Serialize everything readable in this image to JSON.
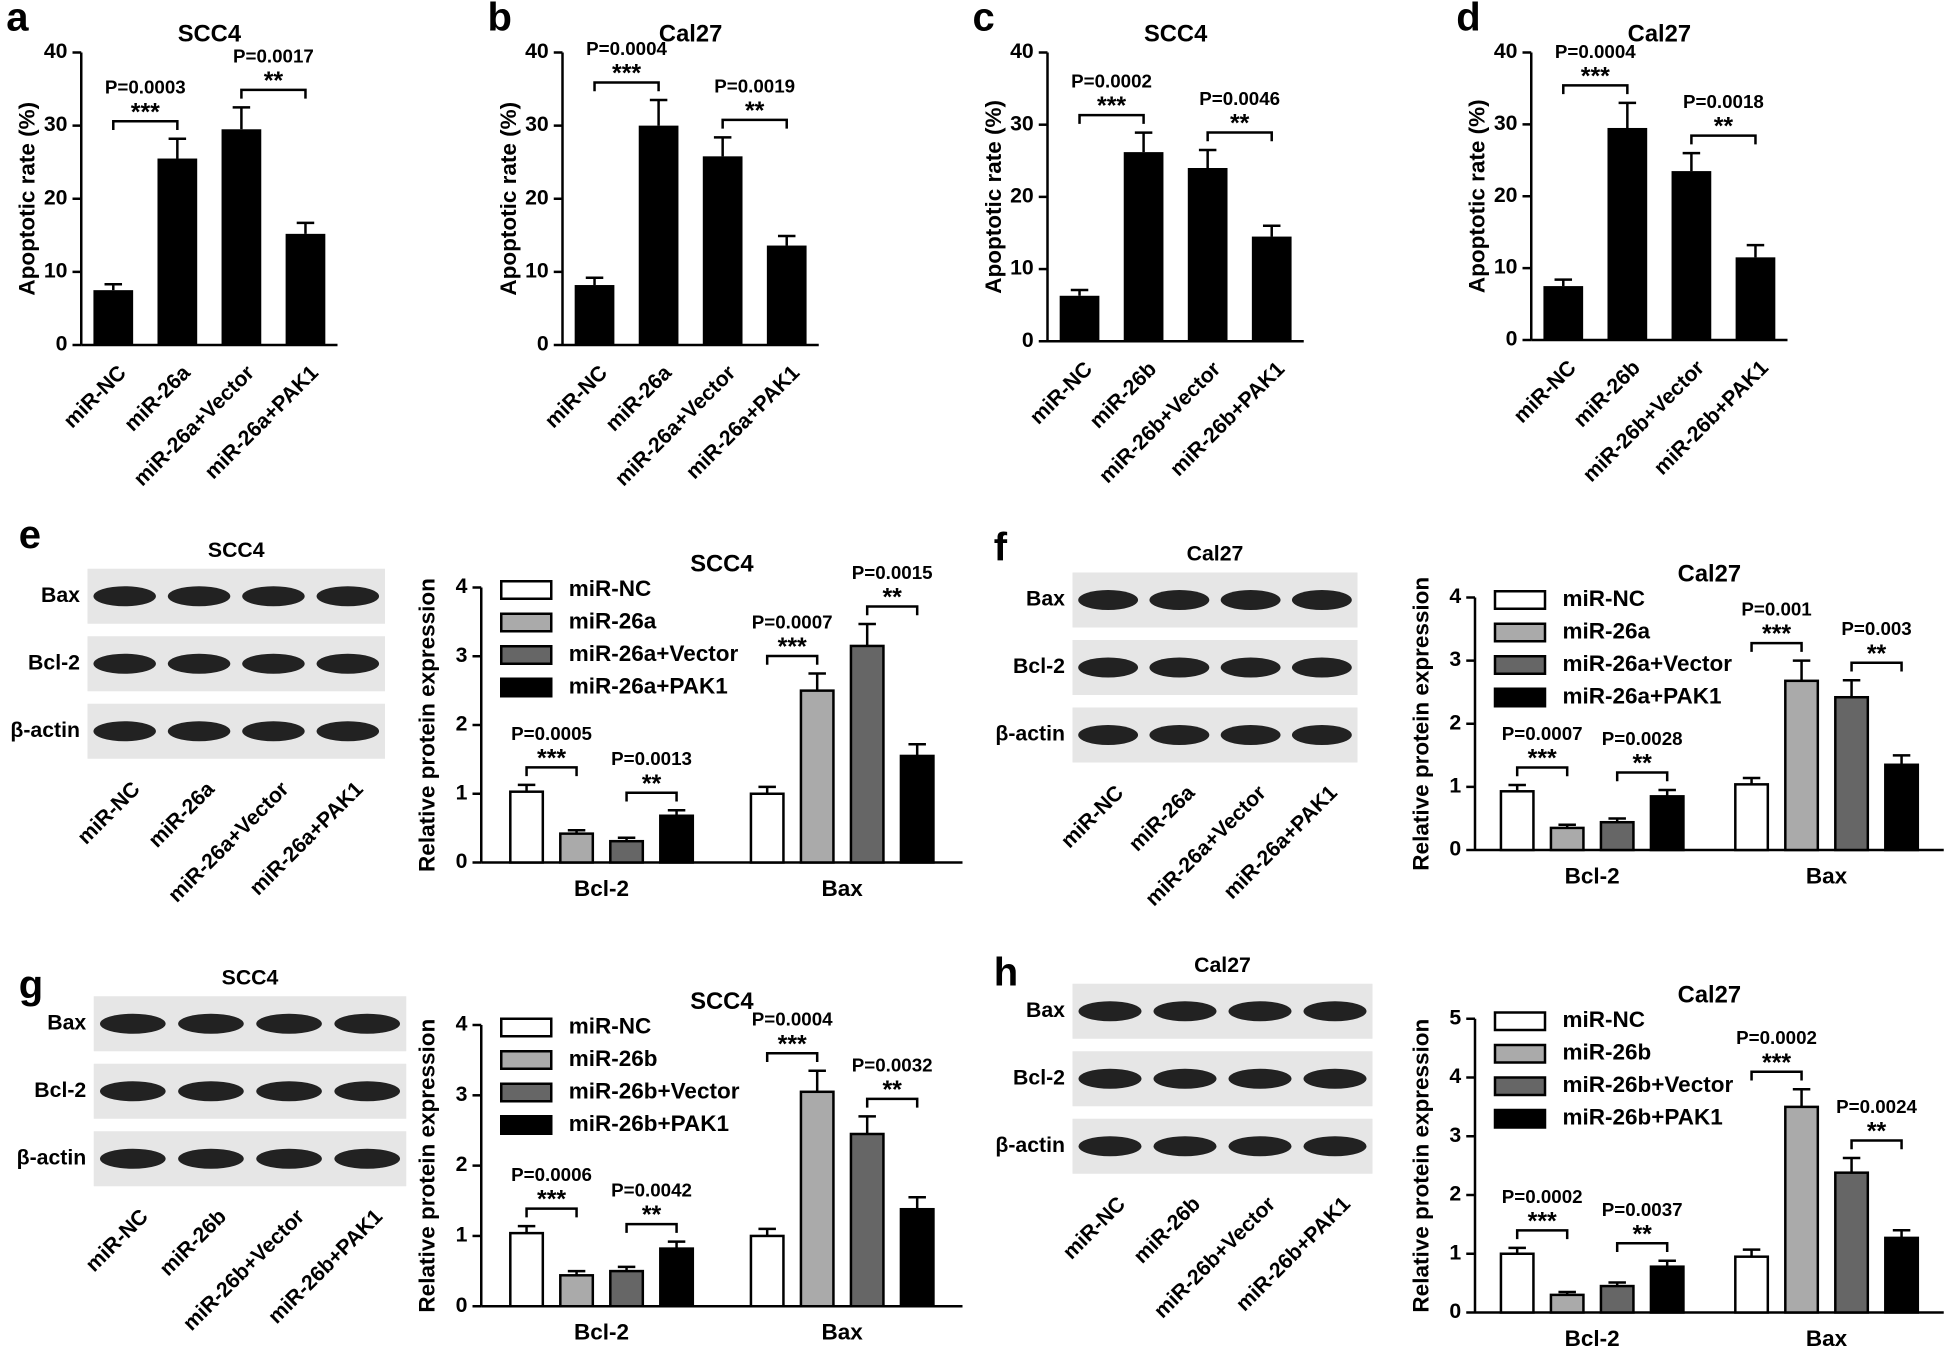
{
  "chart_data": [
    {
      "type": "bar",
      "label": "a",
      "title": "SCC4",
      "y_label": "Apoptotic rate (%)",
      "color": "#000000",
      "categories": [
        "miR-NC",
        "miR-26a",
        "miR-26a+Vector",
        "miR-26a+PAK1"
      ],
      "values": [
        7.5,
        25.5,
        29.5,
        15.2
      ],
      "errors": [
        0.8,
        2.7,
        3,
        1.5
      ],
      "ylim": [
        0,
        40
      ],
      "yticks": [
        0,
        10,
        20,
        30,
        40
      ],
      "comparisons": [
        {
          "stars": "***",
          "p": "P=0.0003"
        },
        {
          "stars": "**",
          "p": "P=0.0017"
        }
      ]
    },
    {
      "type": "bar",
      "label": "b",
      "title": "Cal27",
      "y_label": "Apoptotic rate (%)",
      "color": "#000000",
      "categories": [
        "miR-NC",
        "miR-26a",
        "miR-26a+Vector",
        "miR-26a+PAK1"
      ],
      "values": [
        8.2,
        30,
        25.8,
        13.6
      ],
      "errors": [
        1,
        3.5,
        2.6,
        1.3
      ],
      "ylim": [
        0,
        40
      ],
      "yticks": [
        0,
        10,
        20,
        30,
        40
      ],
      "comparisons": [
        {
          "stars": "***",
          "p": "P=0.0004"
        },
        {
          "stars": "**",
          "p": "P=0.0019"
        }
      ]
    },
    {
      "type": "bar",
      "label": "c",
      "title": "SCC4",
      "y_label": "Apoptotic rate (%)",
      "color": "#000000",
      "categories": [
        "miR-NC",
        "miR-26b",
        "miR-26b+Vector",
        "miR-26b+PAK1"
      ],
      "values": [
        6.3,
        26.2,
        24,
        14.5
      ],
      "errors": [
        0.8,
        2.7,
        2.5,
        1.5
      ],
      "ylim": [
        0,
        40
      ],
      "yticks": [
        0,
        10,
        20,
        30,
        40
      ],
      "comparisons": [
        {
          "stars": "***",
          "p": "P=0.0002"
        },
        {
          "stars": "**",
          "p": "P=0.0046"
        }
      ]
    },
    {
      "type": "bar",
      "label": "d",
      "title": "Cal27",
      "y_label": "Apoptotic rate (%)",
      "color": "#000000",
      "categories": [
        "miR-NC",
        "miR-26b",
        "miR-26b+Vector",
        "miR-26b+PAK1"
      ],
      "values": [
        7.5,
        29.5,
        23.5,
        11.5
      ],
      "errors": [
        0.9,
        3.5,
        2.5,
        1.7
      ],
      "ylim": [
        0,
        40
      ],
      "yticks": [
        0,
        10,
        20,
        30,
        40
      ],
      "comparisons": [
        {
          "stars": "***",
          "p": "P=0.0004"
        },
        {
          "stars": "**",
          "p": "P=0.0018"
        }
      ]
    },
    {
      "type": "blot",
      "label": "e",
      "title": "SCC4",
      "rows": [
        "Bax",
        "Bcl-2",
        "β-actin"
      ],
      "lanes": [
        "miR-NC",
        "miR-26a",
        "miR-26a+Vector",
        "miR-26a+PAK1"
      ]
    },
    {
      "type": "grouped_bar",
      "title": "SCC4",
      "y_label": "Relative protein expression",
      "categories": [
        "Bcl-2",
        "Bax"
      ],
      "series": [
        {
          "name": "miR-NC",
          "color": "#ffffff",
          "values": [
            1.03,
            1.0
          ],
          "errors": [
            0.1,
            0.1
          ]
        },
        {
          "name": "miR-26a",
          "color": "#aaaaaa",
          "values": [
            0.42,
            2.5
          ],
          "errors": [
            0.05,
            0.25
          ]
        },
        {
          "name": "miR-26a+Vector",
          "color": "#666666",
          "values": [
            0.31,
            3.15
          ],
          "errors": [
            0.05,
            0.32
          ]
        },
        {
          "name": "miR-26a+PAK1",
          "color": "#000000",
          "values": [
            0.68,
            1.55
          ],
          "errors": [
            0.08,
            0.17
          ]
        }
      ],
      "ylim": [
        0,
        4
      ],
      "yticks": [
        0,
        1,
        2,
        3,
        4
      ],
      "comparisons": [
        {
          "stars": "***",
          "p": "P=0.0005"
        },
        {
          "stars": "**",
          "p": "P=0.0013"
        },
        {
          "stars": "***",
          "p": "P=0.0007"
        },
        {
          "stars": "**",
          "p": "P=0.0015"
        }
      ]
    },
    {
      "type": "blot",
      "label": "f",
      "title": "Cal27",
      "rows": [
        "Bax",
        "Bcl-2",
        "β-actin"
      ],
      "lanes": [
        "miR-NC",
        "miR-26a",
        "miR-26a+Vector",
        "miR-26a+PAK1"
      ]
    },
    {
      "type": "grouped_bar",
      "title": "Cal27",
      "y_label": "Relative protein expression",
      "categories": [
        "Bcl-2",
        "Bax"
      ],
      "series": [
        {
          "name": "miR-NC",
          "color": "#ffffff",
          "values": [
            0.93,
            1.04
          ],
          "errors": [
            0.1,
            0.1
          ]
        },
        {
          "name": "miR-26a",
          "color": "#aaaaaa",
          "values": [
            0.35,
            2.68
          ],
          "errors": [
            0.05,
            0.32
          ]
        },
        {
          "name": "miR-26a+Vector",
          "color": "#666666",
          "values": [
            0.44,
            2.42
          ],
          "errors": [
            0.06,
            0.27
          ]
        },
        {
          "name": "miR-26a+PAK1",
          "color": "#000000",
          "values": [
            0.85,
            1.35
          ],
          "errors": [
            0.1,
            0.15
          ]
        }
      ],
      "ylim": [
        0,
        4
      ],
      "yticks": [
        0,
        1,
        2,
        3,
        4
      ],
      "comparisons": [
        {
          "stars": "***",
          "p": "P=0.0007"
        },
        {
          "stars": "**",
          "p": "P=0.0028"
        },
        {
          "stars": "***",
          "p": "P=0.001"
        },
        {
          "stars": "**",
          "p": "P=0.003"
        }
      ]
    },
    {
      "type": "blot",
      "label": "g",
      "title": "SCC4",
      "rows": [
        "Bax",
        "Bcl-2",
        "β-actin"
      ],
      "lanes": [
        "miR-NC",
        "miR-26b",
        "miR-26b+Vector",
        "miR-26b+PAK1"
      ]
    },
    {
      "type": "grouped_bar",
      "title": "SCC4",
      "y_label": "Relative protein expression",
      "categories": [
        "Bcl-2",
        "Bax"
      ],
      "series": [
        {
          "name": "miR-NC",
          "color": "#ffffff",
          "values": [
            1.04,
            1.0
          ],
          "errors": [
            0.1,
            0.1
          ]
        },
        {
          "name": "miR-26b",
          "color": "#aaaaaa",
          "values": [
            0.44,
            3.05
          ],
          "errors": [
            0.06,
            0.3
          ]
        },
        {
          "name": "miR-26b+Vector",
          "color": "#666666",
          "values": [
            0.5,
            2.45
          ],
          "errors": [
            0.06,
            0.25
          ]
        },
        {
          "name": "miR-26b+PAK1",
          "color": "#000000",
          "values": [
            0.82,
            1.38
          ],
          "errors": [
            0.1,
            0.17
          ]
        }
      ],
      "ylim": [
        0,
        4
      ],
      "yticks": [
        0,
        1,
        2,
        3,
        4
      ],
      "comparisons": [
        {
          "stars": "***",
          "p": "P=0.0006"
        },
        {
          "stars": "**",
          "p": "P=0.0042"
        },
        {
          "stars": "***",
          "p": "P=0.0004"
        },
        {
          "stars": "**",
          "p": "P=0.0032"
        }
      ]
    },
    {
      "type": "blot",
      "label": "h",
      "title": "Cal27",
      "rows": [
        "Bax",
        "Bcl-2",
        "β-actin"
      ],
      "lanes": [
        "miR-NC",
        "miR-26b",
        "miR-26b+Vector",
        "miR-26b+PAK1"
      ]
    },
    {
      "type": "grouped_bar",
      "title": "Cal27",
      "y_label": "Relative protein expression",
      "categories": [
        "Bcl-2",
        "Bax"
      ],
      "series": [
        {
          "name": "miR-NC",
          "color": "#ffffff",
          "values": [
            1.0,
            0.95
          ],
          "errors": [
            0.1,
            0.12
          ]
        },
        {
          "name": "miR-26b",
          "color": "#aaaaaa",
          "values": [
            0.3,
            3.5
          ],
          "errors": [
            0.05,
            0.3
          ]
        },
        {
          "name": "miR-26b+Vector",
          "color": "#666666",
          "values": [
            0.45,
            2.38
          ],
          "errors": [
            0.06,
            0.25
          ]
        },
        {
          "name": "miR-26b+PAK1",
          "color": "#000000",
          "values": [
            0.78,
            1.27
          ],
          "errors": [
            0.1,
            0.13
          ]
        }
      ],
      "ylim": [
        0,
        5
      ],
      "yticks": [
        0,
        1,
        2,
        3,
        4,
        5
      ],
      "comparisons": [
        {
          "stars": "***",
          "p": "P=0.0002"
        },
        {
          "stars": "**",
          "p": "P=0.0037"
        },
        {
          "stars": "***",
          "p": "P=0.0002"
        },
        {
          "stars": "**",
          "p": "P=0.0024"
        }
      ]
    }
  ]
}
